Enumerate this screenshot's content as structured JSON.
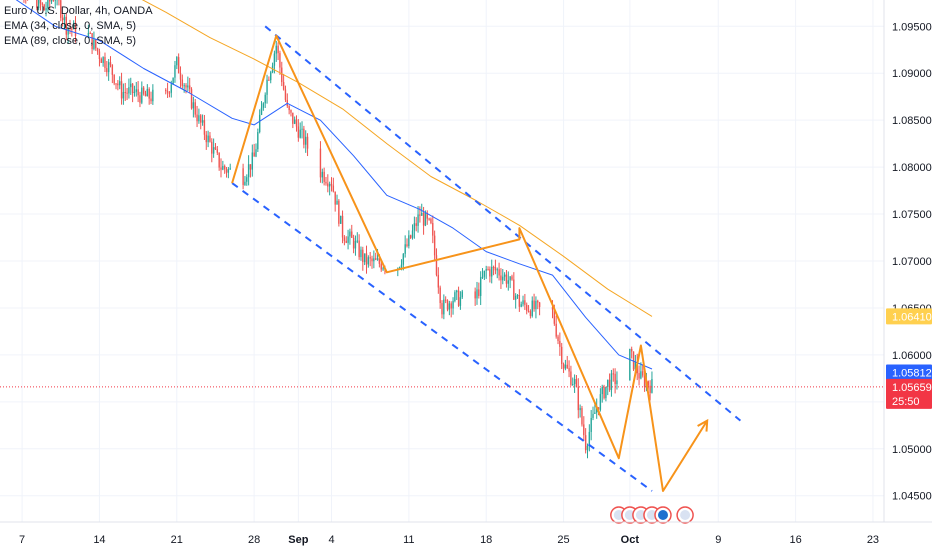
{
  "legend": {
    "title": "Euro / U.S. Dollar, 4h, OANDA",
    "ema1": "EMA (34, close, 0, SMA, 5)",
    "ema2": "EMA (89, close, 0, SMA, 5)"
  },
  "chart_data": {
    "type": "candlestick",
    "symbol": "Euro / U.S. Dollar",
    "timeframe": "4h",
    "source": "OANDA",
    "x_tick_labels": [
      "7",
      "14",
      "21",
      "28",
      "Sep",
      "4",
      "11",
      "18",
      "25",
      "Oct",
      "9",
      "16",
      "23"
    ],
    "price_axis_labels": [
      "1.09500",
      "1.09000",
      "1.08500",
      "1.08000",
      "1.07500",
      "1.07000",
      "1.06500",
      "1.06000",
      "1.05500",
      "1.05000",
      "1.04500"
    ],
    "ylim": [
      1.0422,
      1.0978
    ],
    "x_range": [
      "2023-08-05",
      "2023-10-24"
    ],
    "current_price": "1.05812",
    "last_close": "1.05659",
    "countdown": "25:50",
    "ema89_last": "1.06410",
    "colors": {
      "up": "#26a69a",
      "down": "#ef5350",
      "ema34": "#2962ff",
      "ema89": "#f5a623",
      "pattern": "#f7931a",
      "channel": "#2962ff",
      "ema89_tag": "#ffd04f",
      "price_tag": "#2962ff",
      "close_tag": "#f23645"
    },
    "price_path": [
      [
        "2023-08-05",
        1.099
      ],
      [
        "2023-08-07",
        1.0995
      ],
      [
        "2023-08-09",
        1.0968
      ],
      [
        "2023-08-10",
        1.0985
      ],
      [
        "2023-08-11",
        1.095
      ],
      [
        "2023-08-13",
        1.094
      ],
      [
        "2023-08-14",
        1.092
      ],
      [
        "2023-08-15",
        1.0905
      ],
      [
        "2023-08-16",
        1.088
      ],
      [
        "2023-08-17",
        1.088
      ],
      [
        "2023-08-18",
        1.0875
      ],
      [
        "2023-08-20",
        1.0875
      ],
      [
        "2023-08-21",
        1.091
      ],
      [
        "2023-08-22",
        1.088
      ],
      [
        "2023-08-23",
        1.085
      ],
      [
        "2023-08-24",
        1.0825
      ],
      [
        "2023-08-25",
        1.08
      ],
      [
        "2023-08-27",
        1.079
      ],
      [
        "2023-08-28",
        1.081
      ],
      [
        "2023-08-29",
        1.0885
      ],
      [
        "2023-08-30",
        1.093
      ],
      [
        "2023-08-31",
        1.086
      ],
      [
        "2023-09-01",
        1.084
      ],
      [
        "2023-09-03",
        1.0795
      ],
      [
        "2023-09-04",
        1.0785
      ],
      [
        "2023-09-05",
        1.073
      ],
      [
        "2023-09-06",
        1.072
      ],
      [
        "2023-09-07",
        1.07
      ],
      [
        "2023-09-08",
        1.0698
      ],
      [
        "2023-09-10",
        1.0695
      ],
      [
        "2023-09-11",
        1.072
      ],
      [
        "2023-09-12",
        1.075
      ],
      [
        "2023-09-13",
        1.0735
      ],
      [
        "2023-09-14",
        1.065
      ],
      [
        "2023-09-15",
        1.066
      ],
      [
        "2023-09-17",
        1.066
      ],
      [
        "2023-09-18",
        1.069
      ],
      [
        "2023-09-19",
        1.069
      ],
      [
        "2023-09-20",
        1.068
      ],
      [
        "2023-09-21",
        1.0655
      ],
      [
        "2023-09-22",
        1.065
      ],
      [
        "2023-09-24",
        1.0645
      ],
      [
        "2023-09-25",
        1.059
      ],
      [
        "2023-09-26",
        1.057
      ],
      [
        "2023-09-27",
        1.0505
      ],
      [
        "2023-09-28",
        1.0545
      ],
      [
        "2023-09-29",
        1.057
      ],
      [
        "2023-09-30",
        1.0575
      ],
      [
        "2023-10-01",
        1.06
      ],
      [
        "2023-10-02",
        1.0575
      ],
      [
        "2023-10-03",
        1.0567
      ]
    ],
    "ema34": [
      [
        "2023-08-05",
        1.099
      ],
      [
        "2023-08-10",
        1.095
      ],
      [
        "2023-08-14",
        1.0935
      ],
      [
        "2023-08-18",
        1.0905
      ],
      [
        "2023-08-22",
        1.088
      ],
      [
        "2023-08-26",
        1.0852
      ],
      [
        "2023-08-28",
        1.0845
      ],
      [
        "2023-08-31",
        1.0868
      ],
      [
        "2023-09-03",
        1.085
      ],
      [
        "2023-09-06",
        1.0812
      ],
      [
        "2023-09-09",
        1.077
      ],
      [
        "2023-09-12",
        1.0755
      ],
      [
        "2023-09-15",
        1.0735
      ],
      [
        "2023-09-18",
        1.071
      ],
      [
        "2023-09-21",
        1.0697
      ],
      [
        "2023-09-24",
        1.0685
      ],
      [
        "2023-09-27",
        1.064
      ],
      [
        "2023-09-30",
        1.06
      ],
      [
        "2023-10-03",
        1.0585
      ]
    ],
    "ema89": [
      [
        "2023-08-16",
        1.099
      ],
      [
        "2023-08-20",
        1.0965
      ],
      [
        "2023-08-24",
        1.0938
      ],
      [
        "2023-08-28",
        1.0915
      ],
      [
        "2023-09-01",
        1.089
      ],
      [
        "2023-09-05",
        1.0862
      ],
      [
        "2023-09-09",
        1.0825
      ],
      [
        "2023-09-13",
        1.079
      ],
      [
        "2023-09-17",
        1.0765
      ],
      [
        "2023-09-21",
        1.0738
      ],
      [
        "2023-09-25",
        1.0705
      ],
      [
        "2023-09-29",
        1.067
      ],
      [
        "2023-10-03",
        1.0641
      ]
    ],
    "channel_upper": [
      [
        "2023-08-29",
        1.095
      ],
      [
        "2023-10-11",
        1.053
      ]
    ],
    "channel_lower": [
      [
        "2023-08-26",
        1.0783
      ],
      [
        "2023-10-03",
        1.0455
      ]
    ],
    "pattern_lines": [
      [
        [
          "2023-08-26",
          1.0783
        ],
        [
          "2023-08-30",
          1.094
        ],
        [
          "2023-09-09",
          1.0688
        ],
        [
          "2023-09-21",
          1.0723
        ],
        [
          "2023-09-21",
          1.0735
        ],
        [
          "2023-09-30",
          1.049
        ],
        [
          "2023-10-02",
          1.061
        ],
        [
          "2023-10-04",
          1.0455
        ],
        [
          "2023-10-08",
          1.053
        ]
      ]
    ],
    "event_icon_dates": [
      "2023-09-30",
      "2023-10-01",
      "2023-10-02",
      "2023-10-03",
      "2023-10-04",
      "2023-10-06"
    ],
    "grid": true
  }
}
